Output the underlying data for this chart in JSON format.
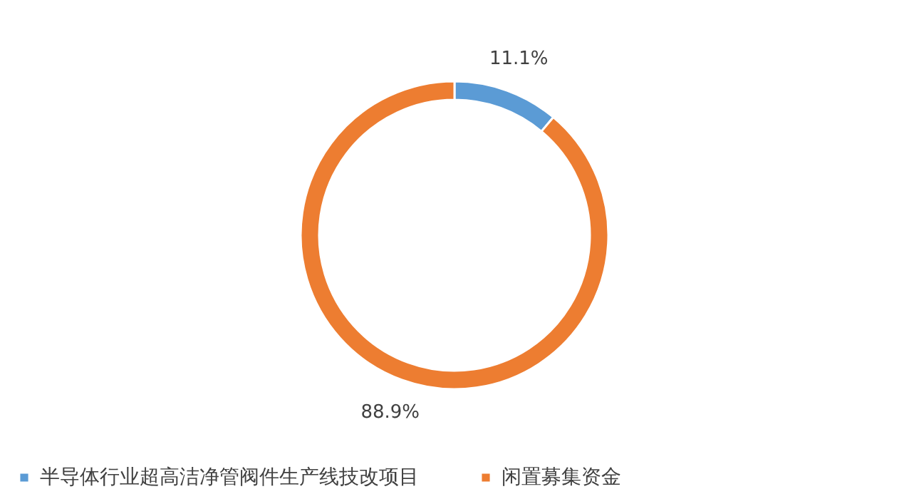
{
  "chart_data": {
    "type": "donut",
    "categories": [
      "半导体行业超高洁净管阀件生产线技改项目",
      "闲置募集资金"
    ],
    "values": [
      11.1,
      88.9
    ],
    "colors": [
      "#5b9bd5",
      "#ed7d31"
    ],
    "value_labels": [
      "11.1%",
      "88.9%"
    ],
    "legend": "bottom"
  }
}
